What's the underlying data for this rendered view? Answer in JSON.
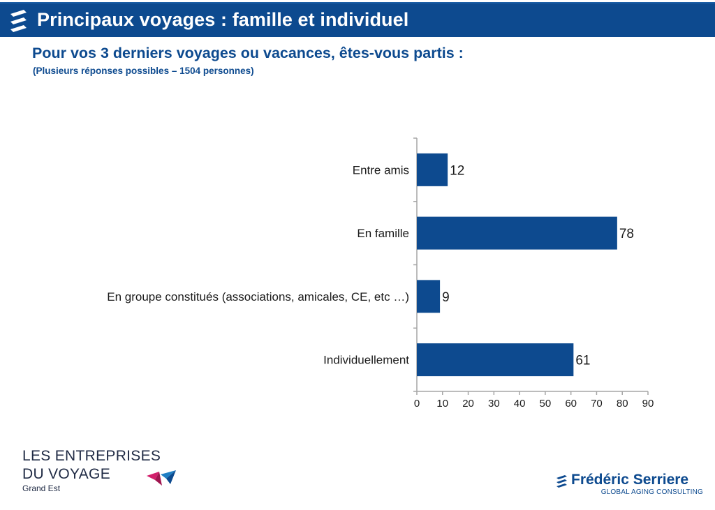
{
  "header": {
    "title": "Principaux voyages : famille et individuel",
    "logo_icon": "ribbon-stripes-icon",
    "bg_color": "#0d4a8f"
  },
  "question": "Pour vos 3 derniers voyages ou vacances, êtes-vous partis :",
  "subnote": "(Plusieurs réponses possibles – 1504 personnes)",
  "chart_data": {
    "type": "bar",
    "orientation": "horizontal",
    "categories": [
      "Entre amis",
      "En famille",
      "En groupe constitués (associations, amicales, CE, etc …)",
      "Individuellement"
    ],
    "values": [
      12,
      78,
      9,
      61
    ],
    "xlim": [
      0,
      90
    ],
    "xticks": [
      0,
      10,
      20,
      30,
      40,
      50,
      60,
      70,
      80,
      90
    ],
    "bar_color": "#0d4a8f",
    "data_labels": true,
    "grid": false,
    "legend": "none"
  },
  "footer": {
    "left_line1": "LES ENTREPRISES",
    "left_line2": "DU VOYAGE",
    "left_line3": "Grand Est",
    "left_icon": "paper-plane-logo-icon",
    "right_name": "Frédéric Serriere",
    "right_tagline": "GLOBAL AGING CONSULTING",
    "right_icon": "stripes-logo-icon"
  }
}
